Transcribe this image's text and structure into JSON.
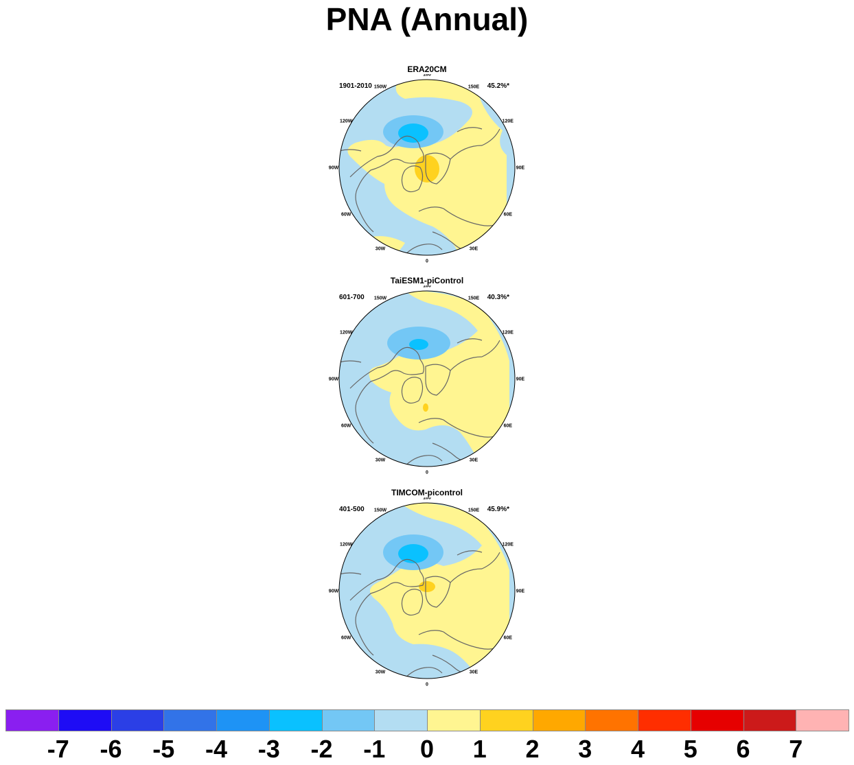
{
  "title": "PNA (Annual)",
  "panels": [
    {
      "name": "ERA20CM",
      "period": "1901-2010",
      "variance": "45.2%*"
    },
    {
      "name": "TaiESM1-piControl",
      "period": "601-700",
      "variance": "40.3%*"
    },
    {
      "name": "TIMCOM-picontrol",
      "period": "401-500",
      "variance": "45.9%*"
    }
  ],
  "longitude_labels": [
    "180",
    "150E",
    "120E",
    "90E",
    "60E",
    "30E",
    "0",
    "30W",
    "60W",
    "90W",
    "120W",
    "150W"
  ],
  "colorbar": {
    "colors": [
      "#8a1ff0",
      "#1e0cf5",
      "#2b3fe6",
      "#3273e8",
      "#1e93f5",
      "#0ac1ff",
      "#73c7f5",
      "#b3ddf2",
      "#fff591",
      "#ffd21f",
      "#ffa800",
      "#ff7300",
      "#ff2e00",
      "#e60000",
      "#cc1a1a",
      "#ffb3b3"
    ],
    "labels": [
      "-7",
      "-6",
      "-5",
      "-4",
      "-3",
      "-2",
      "-1",
      "0",
      "1",
      "2",
      "3",
      "4",
      "5",
      "6",
      "7"
    ]
  },
  "colors": {
    "negative_weak": "#b3ddf2",
    "negative_mid": "#73c7f5",
    "negative_strong": "#0ac1ff",
    "positive_weak": "#fff591",
    "positive_mid": "#ffd21f",
    "coastline": "#666666"
  }
}
